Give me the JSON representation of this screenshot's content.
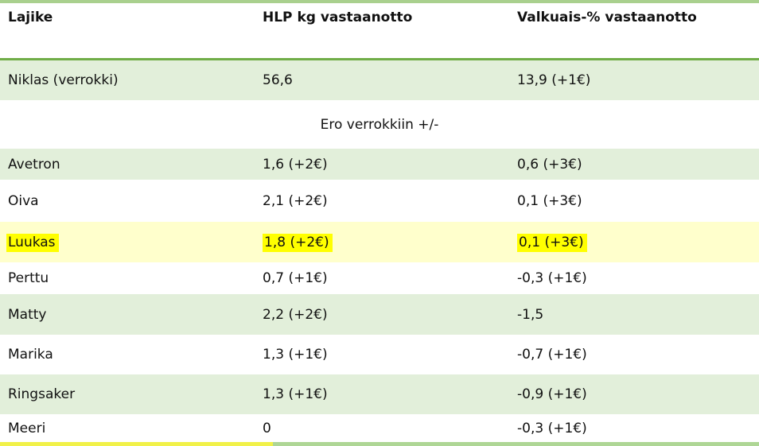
{
  "table": {
    "columns": [
      "Lajike",
      "HLP kg vastaanotto",
      "Valkuais-% vastaanotto"
    ],
    "reference_row": {
      "name": "Niklas (verrokki)",
      "hlp": "56,6",
      "protein": "13,9 (+1€)"
    },
    "separator_label": "Ero verrokkiin +/-",
    "rows": [
      {
        "name": "Avetron",
        "hlp": "1,6 (+2€)",
        "protein": "0,6 (+3€)",
        "bg": "green",
        "highlighted": false
      },
      {
        "name": "Oiva",
        "hlp": "2,1 (+2€)",
        "protein": "0,1 (+3€)",
        "bg": "white",
        "highlighted": false
      },
      {
        "name": "Luukas",
        "hlp": "1,8 (+2€)",
        "protein": "0,1 (+3€)",
        "bg": "yellow",
        "highlighted": true
      },
      {
        "name": "Perttu",
        "hlp": "0,7 (+1€)",
        "protein": "-0,3 (+1€)",
        "bg": "white",
        "highlighted": false
      },
      {
        "name": "Matty",
        "hlp": "2,2 (+2€)",
        "protein": "-1,5",
        "bg": "green",
        "highlighted": false
      },
      {
        "name": "Marika",
        "hlp": "1,3 (+1€)",
        "protein": "-0,7 (+1€)",
        "bg": "white",
        "highlighted": false
      },
      {
        "name": "Ringsaker",
        "hlp": "1,3 (+1€)",
        "protein": "-0,9 (+1€)",
        "bg": "green",
        "highlighted": false
      },
      {
        "name": "Meeri",
        "hlp": "0",
        "protein": "-0,3 (+1€)",
        "bg": "white",
        "highlighted": false
      }
    ]
  },
  "colors": {
    "top_border_green": "#a9d08e",
    "header_rule_green": "#70ad47",
    "row_green": "#e2efda",
    "row_yellow_pale": "#ffffcc",
    "highlight_yellow": "#ffff00",
    "bottom_left_yellow": "#f1f148",
    "bottom_right_green": "#aed695"
  }
}
